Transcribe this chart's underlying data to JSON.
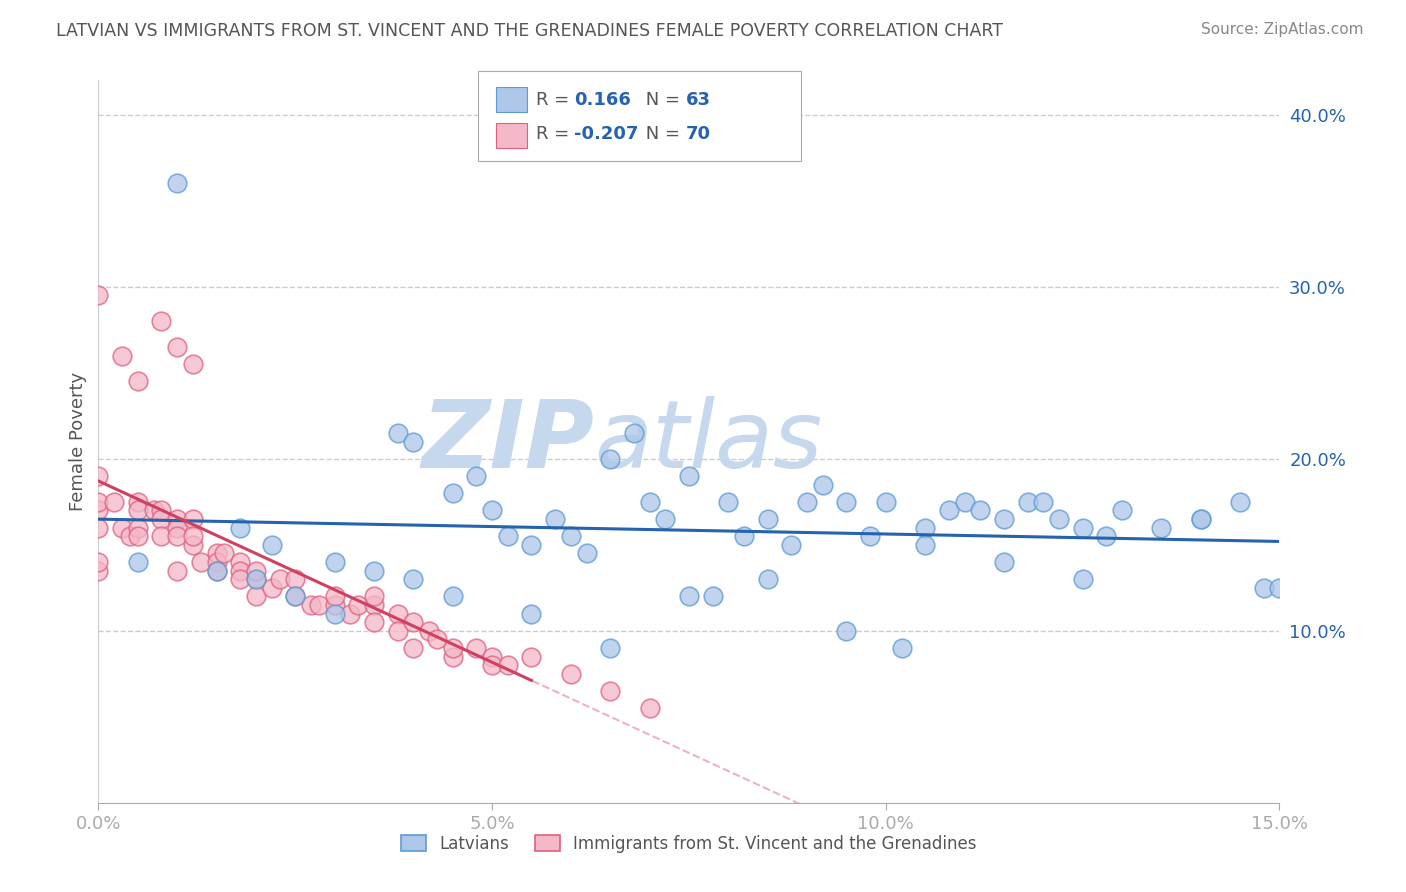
{
  "title": "LATVIAN VS IMMIGRANTS FROM ST. VINCENT AND THE GRENADINES FEMALE POVERTY CORRELATION CHART",
  "source": "Source: ZipAtlas.com",
  "xlabel_latvians": "Latvians",
  "xlabel_immigrants": "Immigrants from St. Vincent and the Grenadines",
  "ylabel": "Female Poverty",
  "xlim": [
    0.0,
    0.15
  ],
  "ylim": [
    0.0,
    0.42
  ],
  "x_ticks": [
    0.0,
    0.05,
    0.1,
    0.15
  ],
  "x_tick_labels": [
    "0.0%",
    "5.0%",
    "10.0%",
    "15.0%"
  ],
  "y_ticks": [
    0.1,
    0.2,
    0.3,
    0.4
  ],
  "y_tick_labels": [
    "10.0%",
    "20.0%",
    "30.0%",
    "40.0%"
  ],
  "blue_color": "#aec6e8",
  "blue_edge": "#5b9bd5",
  "pink_color": "#f4b8c8",
  "pink_edge": "#e06080",
  "blue_line_color": "#2563ae",
  "pink_line_color": "#d04060",
  "pink_dashed_color": "#e8a0b0",
  "R_blue": 0.166,
  "N_blue": 63,
  "R_pink": -0.207,
  "N_pink": 70,
  "watermark_zip_color": "#c5d8ee",
  "watermark_atlas_color": "#c5d8ee",
  "background_color": "#ffffff",
  "grid_color": "#cccccc",
  "title_color": "#555555",
  "source_color": "#888888",
  "legend_text_color": "#555555",
  "legend_value_color": "#2563ae",
  "blue_scatter_x": [
    0.005,
    0.018,
    0.022,
    0.03,
    0.038,
    0.04,
    0.045,
    0.048,
    0.05,
    0.052,
    0.055,
    0.058,
    0.06,
    0.062,
    0.065,
    0.068,
    0.07,
    0.072,
    0.075,
    0.078,
    0.08,
    0.082,
    0.085,
    0.088,
    0.09,
    0.092,
    0.095,
    0.098,
    0.1,
    0.102,
    0.105,
    0.108,
    0.11,
    0.112,
    0.115,
    0.118,
    0.12,
    0.122,
    0.125,
    0.128,
    0.13,
    0.135,
    0.14,
    0.145,
    0.148,
    0.15,
    0.01,
    0.015,
    0.02,
    0.025,
    0.03,
    0.035,
    0.04,
    0.045,
    0.055,
    0.065,
    0.075,
    0.085,
    0.095,
    0.105,
    0.115,
    0.125,
    0.14
  ],
  "blue_scatter_y": [
    0.14,
    0.16,
    0.15,
    0.14,
    0.215,
    0.21,
    0.18,
    0.19,
    0.17,
    0.155,
    0.15,
    0.165,
    0.155,
    0.145,
    0.2,
    0.215,
    0.175,
    0.165,
    0.19,
    0.12,
    0.175,
    0.155,
    0.165,
    0.15,
    0.175,
    0.185,
    0.175,
    0.155,
    0.175,
    0.09,
    0.16,
    0.17,
    0.175,
    0.17,
    0.165,
    0.175,
    0.175,
    0.165,
    0.16,
    0.155,
    0.17,
    0.16,
    0.165,
    0.175,
    0.125,
    0.125,
    0.36,
    0.135,
    0.13,
    0.12,
    0.11,
    0.135,
    0.13,
    0.12,
    0.11,
    0.09,
    0.12,
    0.13,
    0.1,
    0.15,
    0.14,
    0.13,
    0.165
  ],
  "pink_scatter_x": [
    0.0,
    0.0,
    0.0,
    0.0,
    0.0,
    0.0,
    0.002,
    0.003,
    0.004,
    0.005,
    0.005,
    0.005,
    0.005,
    0.007,
    0.008,
    0.008,
    0.008,
    0.01,
    0.01,
    0.01,
    0.01,
    0.012,
    0.012,
    0.012,
    0.013,
    0.015,
    0.015,
    0.015,
    0.016,
    0.018,
    0.018,
    0.018,
    0.02,
    0.02,
    0.02,
    0.022,
    0.023,
    0.025,
    0.025,
    0.027,
    0.028,
    0.03,
    0.03,
    0.032,
    0.033,
    0.035,
    0.035,
    0.035,
    0.038,
    0.038,
    0.04,
    0.04,
    0.042,
    0.043,
    0.045,
    0.045,
    0.048,
    0.05,
    0.05,
    0.052,
    0.055,
    0.06,
    0.065,
    0.07,
    0.008,
    0.01,
    0.012,
    0.005,
    0.003,
    0.0
  ],
  "pink_scatter_y": [
    0.135,
    0.14,
    0.16,
    0.17,
    0.19,
    0.175,
    0.175,
    0.16,
    0.155,
    0.175,
    0.16,
    0.155,
    0.17,
    0.17,
    0.17,
    0.165,
    0.155,
    0.165,
    0.16,
    0.155,
    0.135,
    0.15,
    0.165,
    0.155,
    0.14,
    0.145,
    0.14,
    0.135,
    0.145,
    0.14,
    0.135,
    0.13,
    0.13,
    0.135,
    0.12,
    0.125,
    0.13,
    0.13,
    0.12,
    0.115,
    0.115,
    0.115,
    0.12,
    0.11,
    0.115,
    0.115,
    0.12,
    0.105,
    0.11,
    0.1,
    0.09,
    0.105,
    0.1,
    0.095,
    0.085,
    0.09,
    0.09,
    0.085,
    0.08,
    0.08,
    0.085,
    0.075,
    0.065,
    0.055,
    0.28,
    0.265,
    0.255,
    0.245,
    0.26,
    0.295
  ]
}
